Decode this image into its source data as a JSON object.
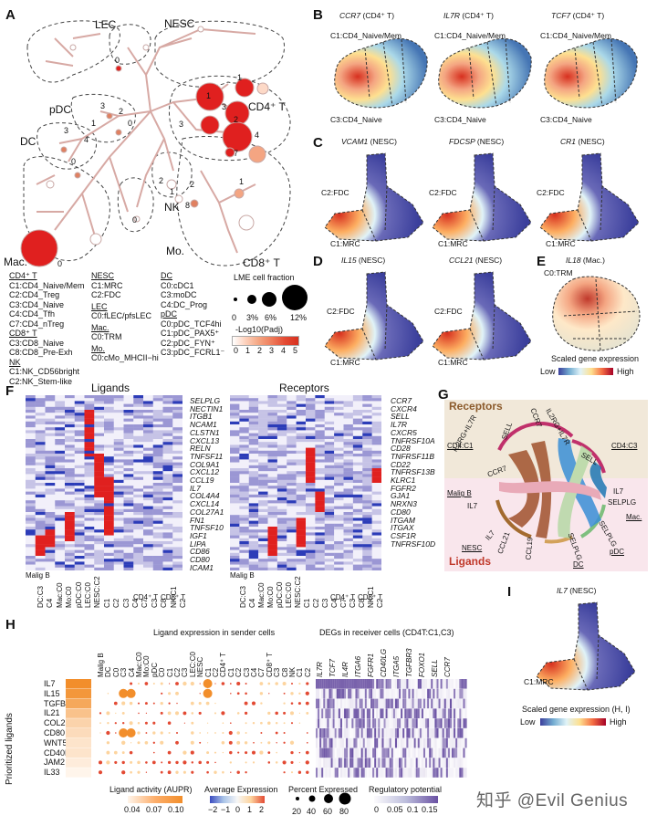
{
  "panels": {
    "A": "A",
    "B": "B",
    "C": "C",
    "D": "D",
    "E": "E",
    "F": "F",
    "G": "G",
    "H": "H",
    "I": "I"
  },
  "panelA": {
    "groups": {
      "lec": "LEC",
      "nesc": "NESC",
      "pdc": "pDC",
      "dc": "DC",
      "cd4t": "CD4⁺ T",
      "nk": "NK",
      "mo": "Mo.",
      "cd8t": "CD8⁺ T",
      "mac": "Mac."
    },
    "node_numbers": {
      "lec0": "0",
      "nesc1": "1",
      "cd4_1": "1",
      "cd4_2": "2",
      "cd4_3": "3",
      "cd4_4": "4",
      "cd4_7": "7",
      "cd4_3b": "3",
      "pdc3": "3",
      "pdc2": "2",
      "pdc1": "1",
      "pdc0": "0",
      "dc3": "3",
      "dc4": "4",
      "dc0": "0",
      "nk2": "2",
      "nk1": "1",
      "nk8": "8",
      "mo0": "0",
      "mac0": "0",
      "cd8_1": "1",
      "cd8_2": "2"
    },
    "legend": {
      "cd4_title": "CD4⁺ T",
      "cd4_items": [
        "C1:CD4_Naive/Mem",
        "C2:CD4_Treg",
        "C3:CD4_Naive",
        "C4:CD4_Tfh",
        "C7:CD4_nTreg"
      ],
      "cd8_title": "CD8⁺ T",
      "cd8_items": [
        "C3:CD8_Naive",
        "C8:CD8_Pre-Exh"
      ],
      "nk_title": "NK",
      "nk_items": [
        "C1:NK_CD56bright",
        "C2:NK_Stem-like"
      ],
      "nesc_title": "NESC",
      "nesc_items": [
        "C1:MRC",
        "C2:FDC"
      ],
      "lec_title": "LEC",
      "lec_items": [
        "C0:fLEC/pfsLEC"
      ],
      "mac_title": "Mac.",
      "mac_items": [
        "C0:TRM"
      ],
      "mo_title": "Mo.",
      "mo_items": [
        "C0:cMo_MHCII−hi"
      ],
      "dc_title": "DC",
      "dc_items": [
        "C0:cDC1",
        "C3:moDC",
        "C4:DC_Prog"
      ],
      "pdc_title": "pDC",
      "pdc_items": [
        "C0:pDC_TCF4hi",
        "C1:pDC_PAX5⁺",
        "C2:pDC_FYN⁺",
        "C3:pDC_FCRL1⁻"
      ],
      "size_title": "LME cell fraction",
      "size_labels": [
        "0",
        "3%",
        "6%",
        "12%"
      ],
      "color_title": "-Log10(Padj)",
      "color_labels": [
        "0",
        "1",
        "2",
        "3",
        "4",
        "5"
      ]
    }
  },
  "panelB": [
    {
      "gene": "CCR7",
      "cell": "(CD4⁺ T)",
      "top": "C1:CD4_Naive/Mem",
      "bottom": "C3:CD4_Naive"
    },
    {
      "gene": "IL7R",
      "cell": "(CD4⁺ T)",
      "top": "C1:CD4_Naive/Mem",
      "bottom": "C3:CD4_Naive"
    },
    {
      "gene": "TCF7",
      "cell": "(CD4⁺ T)",
      "top": "C1:CD4_Naive/Mem",
      "bottom": "C3:CD4_Naive"
    }
  ],
  "panelC": [
    {
      "gene": "VCAM1",
      "cell": "(NESC)",
      "top": "C2:FDC",
      "bottom": "C1:MRC"
    },
    {
      "gene": "FDCSP",
      "cell": "(NESC)",
      "top": "C2:FDC",
      "bottom": "C1:MRC"
    },
    {
      "gene": "CR1",
      "cell": "(NESC)",
      "top": "C2:FDC",
      "bottom": "C1:MRC"
    }
  ],
  "panelD": [
    {
      "gene": "IL15",
      "cell": "(NESC)",
      "top": "C2:FDC",
      "bottom": "C1:MRC"
    },
    {
      "gene": "CCL21",
      "cell": "(NESC)",
      "top": "C2:FDC",
      "bottom": "C1:MRC"
    }
  ],
  "panelE": {
    "gene": "IL18",
    "cell": "(Mac.)",
    "label": "C0:TRM",
    "scale_title": "Scaled gene expression",
    "low": "Low",
    "high": "High"
  },
  "panelF": {
    "ligands_title": "Ligands",
    "receptors_title": "Receptors",
    "lig_genes": [
      "SELPLG",
      "NECTIN1",
      "ITGB1",
      "NCAM1",
      "CLSTN1",
      "CXCL13",
      "RELN",
      "TNFSF11",
      "COL9A1",
      "CXCL12",
      "CCL19",
      "IL7",
      "COL4A4",
      "CXCL14",
      "COL27A1",
      "FN1",
      "TNFSF10",
      "IGF1",
      "LIPA",
      "CD86",
      "CD80",
      "ICAM1"
    ],
    "rec_genes": [
      "CCR7",
      "CXCR4",
      "SELL",
      "IL7R",
      "CXCR5",
      "TNFRSF10A",
      "CD28",
      "TNFRSF11B",
      "CD22",
      "TNFRSF13B",
      "KLRC1",
      "FGFR2",
      "GJA1",
      "NRXN3",
      "CD80",
      "ITGAM",
      "ITGAX",
      "CSF1R",
      "TNFRSF10D"
    ],
    "lig_cols": [
      "DC:C3",
      "C4",
      "Mac:C0",
      "Mo:C0",
      "pDC:C0",
      "LEC:C0",
      "NESC:C2",
      "C1",
      "C2",
      "C3",
      "C4",
      "C7",
      "C3",
      "C8",
      "NK:C1",
      "C2"
    ],
    "group_labels": {
      "maligb": "Malig B",
      "cd4": "CD4⁺ T",
      "cd8": "CD8⁺ T"
    }
  },
  "panelG": {
    "receptors": "Receptors",
    "ligands": "Ligands",
    "top_labels": [
      "IL2RG+IL7R",
      "SELL",
      "CCR7",
      "IL2RG+IL7R",
      "SELL",
      "CCR7"
    ],
    "cd4c1": "CD4:C1",
    "cd4c3": "CD4:C3",
    "left_labels": [
      "Malig B",
      "IL7",
      "IL7",
      "CCL21",
      "CCL19",
      "NESC"
    ],
    "right_labels": [
      "IL7",
      "SELPLG",
      "Mac.",
      "SELPLG",
      "pDC",
      "SELPLG",
      "DC"
    ]
  },
  "panelH": {
    "title_left": "Ligand expression in sender cells",
    "title_right": "DEGs in receiver cells (CD4T:C1,C3)",
    "y_title": "Prioritized ligands",
    "ligands": [
      "IL7",
      "IL15",
      "TGFB1",
      "IL21",
      "COL22A1",
      "CD80",
      "WNT5A",
      "CD40LG",
      "JAM2",
      "IL33"
    ],
    "aupr": [
      0.1,
      0.095,
      0.085,
      0.07,
      0.06,
      0.055,
      0.05,
      0.05,
      0.045,
      0.04
    ],
    "col_headers": [
      "Malig B",
      "DC",
      "C0",
      "C3",
      "C4",
      "Mac:C0",
      "Mo:C0",
      "pDC",
      "C0",
      "C1",
      "C2",
      "C3",
      "LEC:C0",
      "NESC",
      "C1",
      "C2",
      "CD4⁺ T",
      "C1",
      "C2",
      "C3",
      "C4",
      "C7",
      "CD8⁺ T",
      "C3",
      "C8",
      "NK",
      "C1",
      "C2"
    ],
    "deg_genes": [
      "IL7R",
      "TCF7",
      "IL4R",
      "ITGA6",
      "FGFR1",
      "CD40LG",
      "ITGA5",
      "TGFBR3",
      "FOXO1",
      "SELL",
      "CCR7"
    ],
    "leg_aupr_title": "Ligand activity (AUPR)",
    "leg_aupr_labels": [
      "0.04",
      "0.07",
      "0.10"
    ],
    "leg_avg_title": "Average Expression",
    "leg_avg_labels": [
      "−2",
      "−1",
      "0",
      "1",
      "2"
    ],
    "leg_pct_title": "Percent Expressed",
    "leg_pct_labels": [
      "20",
      "40",
      "60",
      "80"
    ],
    "leg_reg_title": "Regulatory potential",
    "leg_reg_labels": [
      "0",
      "0.05",
      "0.1",
      "0.15"
    ]
  },
  "panelI": {
    "gene": "IL7",
    "cell": "(NESC)",
    "label": "C1:MRC",
    "scale_title": "Scaled gene expression (H, I)",
    "low": "Low",
    "high": "High"
  },
  "watermark": "知乎 @Evil Genius",
  "colors": {
    "red": "#e0201f",
    "salmon": "#f4a582",
    "blue": "#3b4cc0",
    "purple": "#8c6bb1",
    "orange": "#f28e2b"
  }
}
